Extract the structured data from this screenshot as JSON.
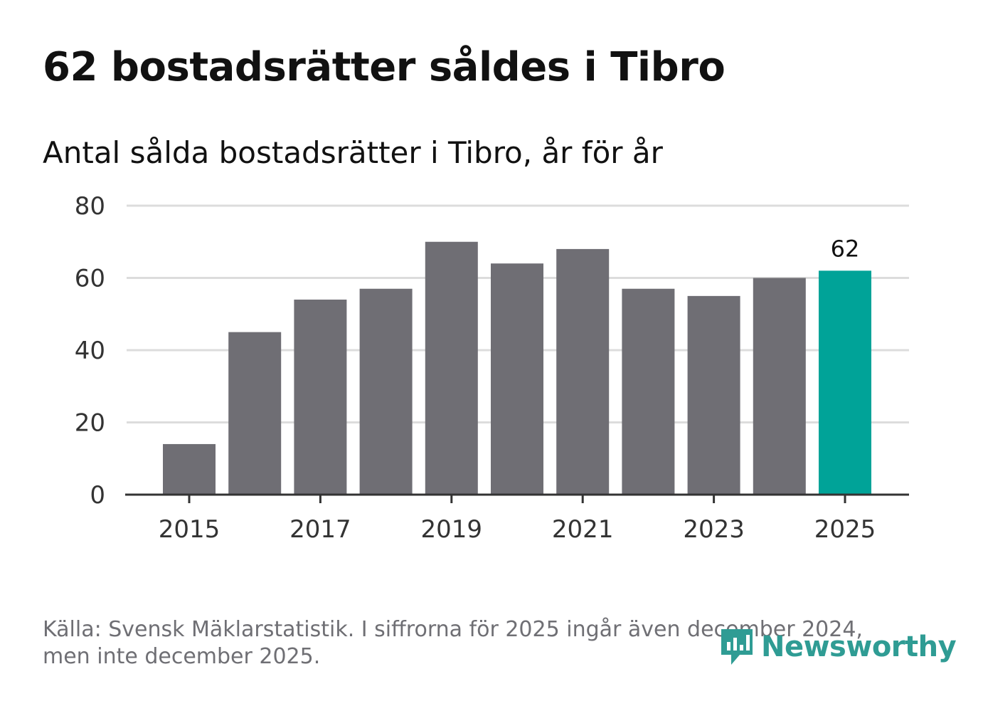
{
  "header": {
    "title": "62 bostadsrätter såldes i Tibro",
    "subtitle": "Antal sålda bostadsrätter i Tibro, år för år"
  },
  "chart_data": {
    "type": "bar",
    "title": "62 bostadsrätter såldes i Tibro",
    "subtitle": "Antal sålda bostadsrätter i Tibro, år för år",
    "categories": [
      "2015",
      "2016",
      "2017",
      "2018",
      "2019",
      "2020",
      "2021",
      "2022",
      "2023",
      "2024",
      "2025"
    ],
    "values": [
      14,
      45,
      54,
      57,
      70,
      64,
      68,
      57,
      55,
      60,
      62
    ],
    "x_tick_labels": [
      "2015",
      "2017",
      "2019",
      "2021",
      "2023",
      "2025"
    ],
    "y_ticks": [
      0,
      20,
      40,
      60,
      80
    ],
    "ylim": [
      0,
      80
    ],
    "xlabel": "",
    "ylabel": "",
    "grid": true,
    "highlight": {
      "category": "2025",
      "label": "62"
    },
    "colors": {
      "bar": "#6f6e74",
      "highlight": "#00a398",
      "grid": "#dcdcdc",
      "axis": "#333333",
      "tick_text": "#333333"
    }
  },
  "footer": {
    "source_line1": "Källa: Svensk Mäklarstatistik. I siffrorna för 2025 ingår även december 2024,",
    "source_line2": "men inte december 2025.",
    "brand": "Newsworthy",
    "brand_icon": "newsworthy-logo-icon"
  }
}
